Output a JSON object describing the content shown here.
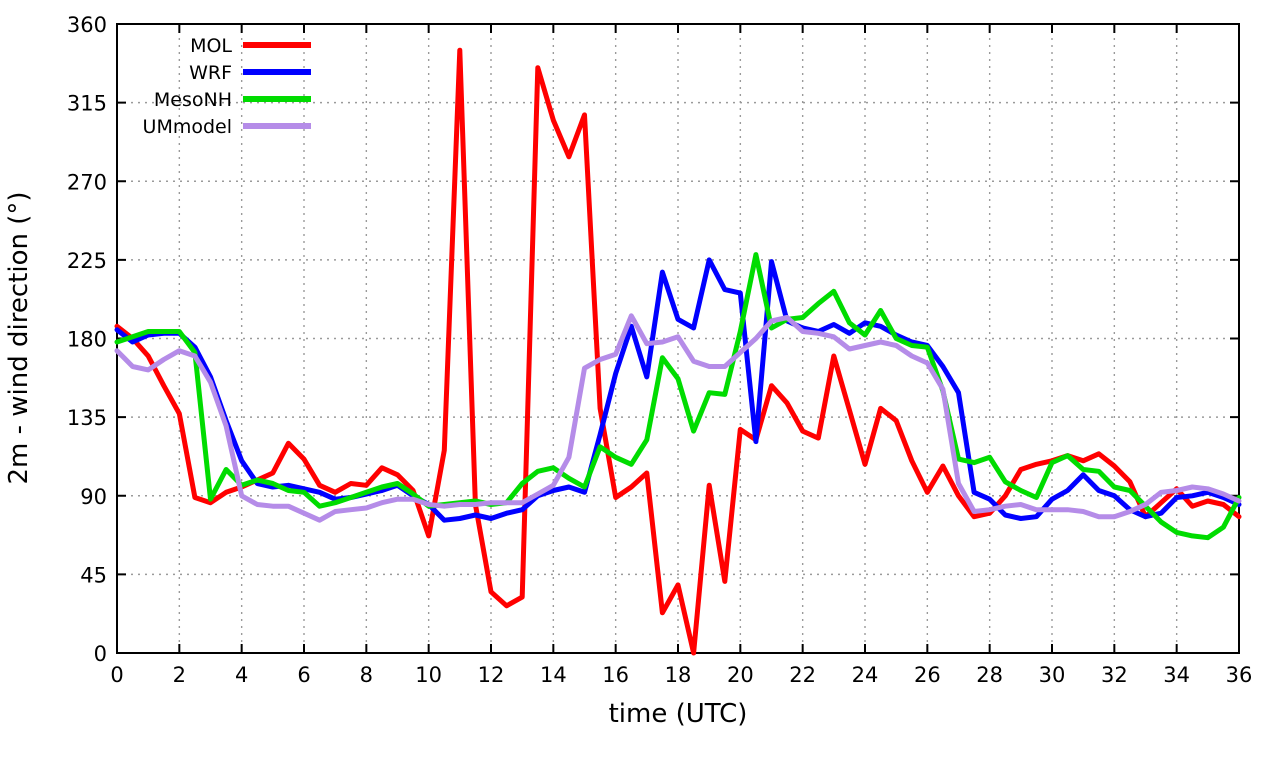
{
  "chart_data": {
    "type": "line",
    "title": "",
    "xlabel": "time (UTC)",
    "ylabel": "2m - wind direction (°)",
    "xlim": [
      0,
      36
    ],
    "ylim": [
      0,
      360
    ],
    "xticks": [
      0,
      2,
      4,
      6,
      8,
      10,
      12,
      14,
      16,
      18,
      20,
      22,
      24,
      26,
      28,
      30,
      32,
      34,
      36
    ],
    "yticks": [
      0,
      45,
      90,
      135,
      180,
      225,
      270,
      315,
      360
    ],
    "grid": true,
    "legend_position": "top-left",
    "x_step": 0.5,
    "series": [
      {
        "name": "MOL",
        "color": "#ff0000",
        "values": [
          187,
          180,
          170,
          153,
          137,
          89,
          86,
          92,
          95,
          99,
          103,
          120,
          111,
          96,
          92,
          97,
          96,
          106,
          102,
          93,
          67,
          116,
          345,
          85,
          35,
          27,
          32,
          335,
          305,
          284,
          308,
          140,
          89,
          95,
          103,
          23,
          39,
          0,
          96,
          41,
          128,
          122,
          153,
          143,
          127,
          123,
          170,
          139,
          108,
          140,
          133,
          110,
          92,
          107,
          90,
          78,
          80,
          90,
          105,
          108,
          110,
          113,
          110,
          114,
          107,
          98,
          78,
          86,
          94,
          84,
          87,
          85,
          78
        ]
      },
      {
        "name": "WRF",
        "color": "#0000ff",
        "values": [
          185,
          178,
          182,
          183,
          183,
          175,
          158,
          133,
          110,
          97,
          95,
          96,
          94,
          92,
          88,
          89,
          91,
          93,
          96,
          90,
          85,
          76,
          77,
          79,
          77,
          80,
          82,
          90,
          93,
          95,
          92,
          125,
          160,
          187,
          158,
          218,
          191,
          186,
          225,
          208,
          206,
          121,
          224,
          190,
          186,
          184,
          188,
          183,
          189,
          187,
          182,
          178,
          176,
          164,
          149,
          92,
          88,
          79,
          77,
          78,
          88,
          93,
          102,
          93,
          90,
          82,
          78,
          80,
          89,
          90,
          92,
          89,
          85
        ]
      },
      {
        "name": "MesoNH",
        "color": "#00dc00",
        "values": [
          178,
          181,
          184,
          184,
          184,
          172,
          88,
          105,
          96,
          99,
          97,
          93,
          92,
          84,
          86,
          89,
          92,
          95,
          97,
          91,
          84,
          85,
          86,
          87,
          85,
          86,
          97,
          104,
          106,
          100,
          95,
          118,
          112,
          108,
          122,
          169,
          157,
          127,
          149,
          148,
          184,
          228,
          186,
          191,
          192,
          200,
          207,
          189,
          182,
          196,
          180,
          176,
          175,
          150,
          111,
          109,
          112,
          98,
          93,
          89,
          109,
          113,
          105,
          104,
          95,
          93,
          84,
          75,
          69,
          67,
          66,
          72,
          89
        ]
      },
      {
        "name": "UMmodel",
        "color": "#b58ce8",
        "values": [
          173,
          164,
          162,
          168,
          173,
          170,
          155,
          130,
          90,
          85,
          84,
          84,
          80,
          76,
          81,
          82,
          83,
          86,
          88,
          88,
          85,
          84,
          85,
          85,
          86,
          86,
          86,
          91,
          96,
          112,
          163,
          168,
          171,
          193,
          177,
          178,
          181,
          167,
          164,
          164,
          172,
          180,
          190,
          192,
          184,
          183,
          181,
          174,
          176,
          178,
          176,
          170,
          166,
          151,
          97,
          81,
          82,
          84,
          85,
          82,
          82,
          82,
          81,
          78,
          78,
          81,
          85,
          92,
          93,
          95,
          94,
          91,
          87
        ]
      }
    ]
  }
}
